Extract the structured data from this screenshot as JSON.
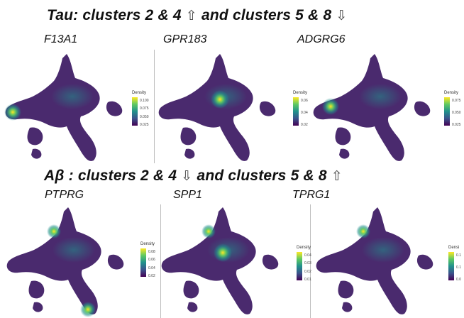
{
  "colors": {
    "background": "#4a2a6e",
    "low": "#3b1f5c",
    "mid": "#21918c",
    "high": "#5ec962",
    "peak": "#fde725",
    "scale": [
      "#440154",
      "#3b528b",
      "#21918c",
      "#5ec962",
      "#fde725"
    ]
  },
  "headings": [
    {
      "label": "Tau: clusters 2 & 4",
      "up_arrow": "⇧",
      "mid": "and clusters 5 & 8",
      "down_arrow": "⇩"
    },
    {
      "label": "Aβ : clusters 2 & 4",
      "down_arrow": "⇩",
      "mid": "and clusters 5 & 8",
      "up_arrow": "⇧"
    }
  ],
  "panels": [
    {
      "gene": "F13A1",
      "legend_title": "Density",
      "ticks": [
        "0.100",
        "0.075",
        "0.050",
        "0.025"
      ],
      "hotspots": [
        "left-tip"
      ]
    },
    {
      "gene": "GPR183",
      "legend_title": "Density",
      "ticks": [
        "0.06",
        "0.04",
        "0.02"
      ],
      "hotspots": [
        "center"
      ]
    },
    {
      "gene": "ADGRG6",
      "legend_title": "Density",
      "ticks": [
        "0.075",
        "0.050",
        "0.025"
      ],
      "hotspots": [
        "left-arm"
      ]
    },
    {
      "gene": "PTPRG",
      "legend_title": "Density",
      "ticks": [
        "0.08",
        "0.06",
        "0.04",
        "0.02"
      ],
      "hotspots": [
        "bottom-tail",
        "upper-left"
      ]
    },
    {
      "gene": "SPP1",
      "legend_title": "Density",
      "ticks": [
        "0.04",
        "0.03",
        "0.02",
        "0.01"
      ],
      "hotspots": [
        "upper-left",
        "center"
      ]
    },
    {
      "gene": "TPRG1",
      "legend_title": "Densi",
      "ticks": [
        "0.1",
        "0.1",
        "0.0"
      ],
      "hotspots": [
        "upper-left"
      ]
    }
  ]
}
